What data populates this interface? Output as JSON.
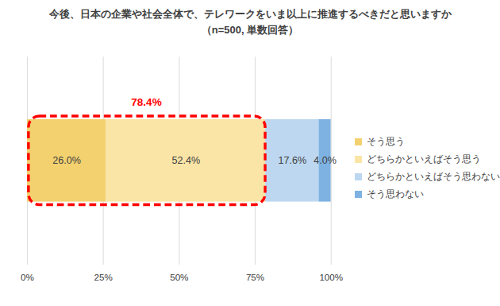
{
  "chart_data": {
    "type": "bar",
    "orientation": "horizontal",
    "stacked": true,
    "title": "今後、日本の企業や社会全体で、テレワークをいま以上に推進するべきだと思いますか",
    "subtitle": "（n=500, 単数回答）",
    "categories": [
      null
    ],
    "series": [
      {
        "name": "そう思う",
        "color": "#f3d16f",
        "values": [
          26.0
        ],
        "value_labels": [
          "26.0%"
        ]
      },
      {
        "name": "どちらかといえばそう思う",
        "color": "#fae5a6",
        "values": [
          52.4
        ],
        "value_labels": [
          "52.4%"
        ]
      },
      {
        "name": "どちらかといえばそう思わない",
        "color": "#bdd7f0",
        "values": [
          17.6
        ],
        "value_labels": [
          "17.6%"
        ]
      },
      {
        "name": "そう思わない",
        "color": "#7eb2e2",
        "values": [
          4.0
        ],
        "value_labels": [
          "4.0%"
        ]
      }
    ],
    "xlim": [
      0,
      100
    ],
    "xticks": [
      {
        "value": 0,
        "label": "0%"
      },
      {
        "value": 25,
        "label": "25%"
      },
      {
        "value": 50,
        "label": "50%"
      },
      {
        "value": 75,
        "label": "75%"
      },
      {
        "value": 100,
        "label": "100%"
      }
    ],
    "grid": true,
    "data_labels": true,
    "tick_labels": "x",
    "legend": "right",
    "annotation": {
      "value": 78.4,
      "label": "78.4%",
      "color": "#ff0000"
    }
  }
}
